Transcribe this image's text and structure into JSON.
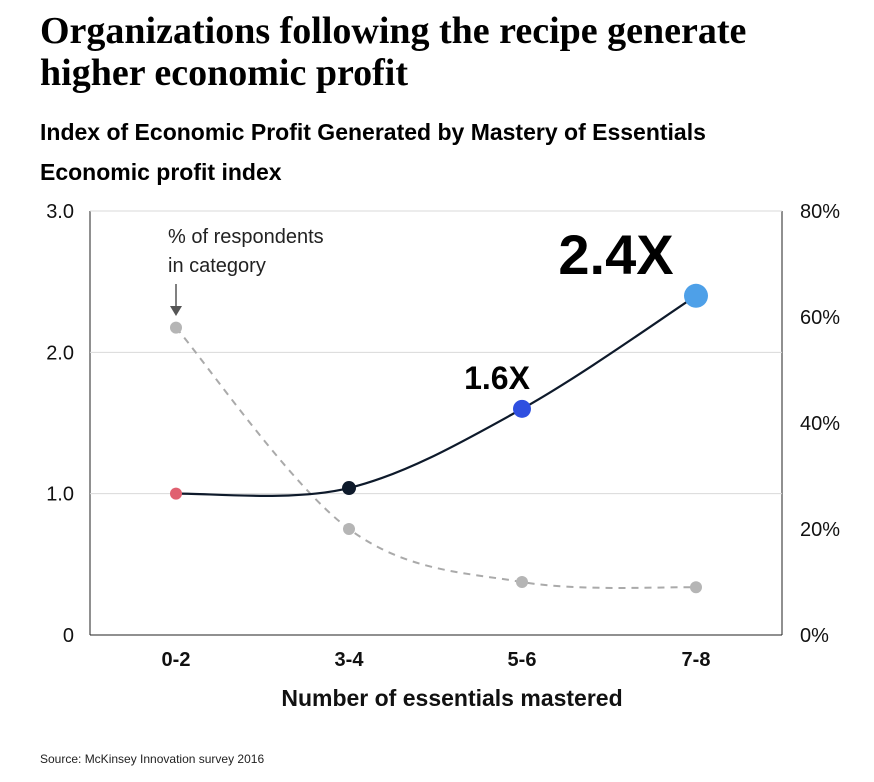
{
  "headline": "Organizations following the recipe generate higher economic profit",
  "source": "Source: McKinsey Innovation survey 2016",
  "chart_data": {
    "type": "line",
    "title": "Index of Economic Profit Generated by Mastery of Essentials",
    "ylabel": "Economic profit index",
    "xlabel": "Number of essentials mastered",
    "categories": [
      "0-2",
      "3-4",
      "5-6",
      "7-8"
    ],
    "ylim": [
      0,
      3.0
    ],
    "y_ticks": [
      "0",
      "1.0",
      "2.0",
      "3.0"
    ],
    "y2lim": [
      0,
      80
    ],
    "y2_ticks": [
      "0%",
      "20%",
      "40%",
      "60%",
      "80%"
    ],
    "grid": true,
    "series": [
      {
        "values": [
          1.0,
          1.04,
          1.6,
          2.4
        ],
        "axis": "left",
        "style": "solid",
        "line_color": "#0e1a2b",
        "point_colors": [
          "#e06070",
          "#0e1a2b",
          "#2f4fe0",
          "#4ea0e8"
        ]
      },
      {
        "name": "% of respondents in category",
        "values": [
          58,
          20,
          10,
          9
        ],
        "axis": "right",
        "style": "dashed",
        "line_color": "#aaaaaa",
        "point_colors": [
          "#b5b5b5",
          "#b5b5b5",
          "#b5b5b5",
          "#b5b5b5"
        ]
      }
    ],
    "annotations": {
      "legend_note_line1": "% of respondents",
      "legend_note_line2": "in category",
      "callout_mid": "1.6X",
      "callout_big": "2.4X"
    }
  }
}
